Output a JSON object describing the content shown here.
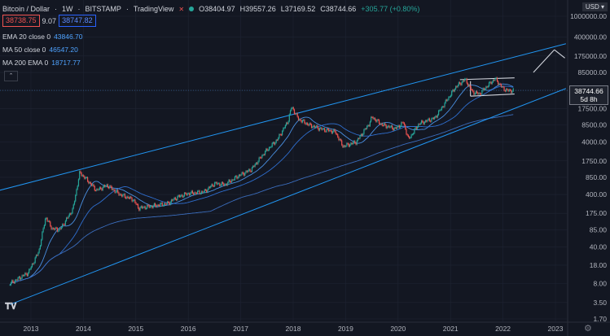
{
  "header": {
    "title": "Bitcoin / Dollar",
    "interval": "1W",
    "exchange": "BITSTAMP",
    "source": "TradingView",
    "open": "O38404.97",
    "high": "H39557.26",
    "low": "L37169.52",
    "close": "C38744.66",
    "change": "+305.77 (+0.80%)"
  },
  "trade": {
    "sell": "38738.75",
    "spread": "9.07",
    "buy": "38747.82"
  },
  "indicators": [
    {
      "label": "EMA 20 close 0",
      "value": "43846.70"
    },
    {
      "label": "MA 50 close 0",
      "value": "46547.20"
    },
    {
      "label": "MA 200 EMA 0",
      "value": "18717.77"
    }
  ],
  "currency": "USD",
  "last_price": "38744.66",
  "countdown": "5d 8h",
  "colors": {
    "background": "#131722",
    "grid": "#1f2433",
    "up": "#26a69a",
    "down": "#ef5350",
    "trendline": "#2196f3",
    "ma": "#2962ff",
    "wedge": "#d1d4dc",
    "text": "#b2b5be"
  },
  "chart_data": {
    "type": "candlestick",
    "scale": "log",
    "x_ticks": [
      "2013",
      "2014",
      "2015",
      "2016",
      "2017",
      "2018",
      "2019",
      "2020",
      "2021",
      "2022",
      "2023"
    ],
    "y_ticks": [
      "1000000.00",
      "400000.00",
      "175000.00",
      "85000.00",
      "38744.66",
      "17500.00",
      "8500.00",
      "4000.00",
      "1750.00",
      "850.00",
      "400.00",
      "175.00",
      "85.00",
      "40.00",
      "18.00",
      "8.00",
      "3.50",
      "1.70"
    ],
    "ylim": [
      1.7,
      1000000
    ],
    "price_path": [
      [
        2012.6,
        8
      ],
      [
        2012.95,
        13
      ],
      [
        2013.15,
        33
      ],
      [
        2013.28,
        150
      ],
      [
        2013.4,
        90
      ],
      [
        2013.55,
        85
      ],
      [
        2013.8,
        210
      ],
      [
        2013.93,
        1050
      ],
      [
        2014.05,
        800
      ],
      [
        2014.25,
        480
      ],
      [
        2014.45,
        600
      ],
      [
        2014.7,
        400
      ],
      [
        2014.95,
        320
      ],
      [
        2015.05,
        220
      ],
      [
        2015.3,
        240
      ],
      [
        2015.6,
        270
      ],
      [
        2015.8,
        360
      ],
      [
        2016.0,
        420
      ],
      [
        2016.3,
        450
      ],
      [
        2016.5,
        650
      ],
      [
        2016.7,
        620
      ],
      [
        2016.95,
        900
      ],
      [
        2017.2,
        1200
      ],
      [
        2017.45,
        2500
      ],
      [
        2017.7,
        4500
      ],
      [
        2017.9,
        10000
      ],
      [
        2017.97,
        19000
      ],
      [
        2018.1,
        11000
      ],
      [
        2018.3,
        8500
      ],
      [
        2018.55,
        7000
      ],
      [
        2018.8,
        6300
      ],
      [
        2018.95,
        3300
      ],
      [
        2019.2,
        4000
      ],
      [
        2019.45,
        9000
      ],
      [
        2019.5,
        12000
      ],
      [
        2019.7,
        8500
      ],
      [
        2019.95,
        7200
      ],
      [
        2020.1,
        9500
      ],
      [
        2020.2,
        4500
      ],
      [
        2020.4,
        9000
      ],
      [
        2020.7,
        11500
      ],
      [
        2020.95,
        27000
      ],
      [
        2021.1,
        45000
      ],
      [
        2021.28,
        63000
      ],
      [
        2021.42,
        36000
      ],
      [
        2021.55,
        33000
      ],
      [
        2021.7,
        47000
      ],
      [
        2021.85,
        65000
      ],
      [
        2022.0,
        42000
      ],
      [
        2022.1,
        38000
      ],
      [
        2022.2,
        38744
      ]
    ],
    "annotations": [
      "channel upper line",
      "channel lower line",
      "wedge pattern",
      "projection arrow"
    ]
  }
}
